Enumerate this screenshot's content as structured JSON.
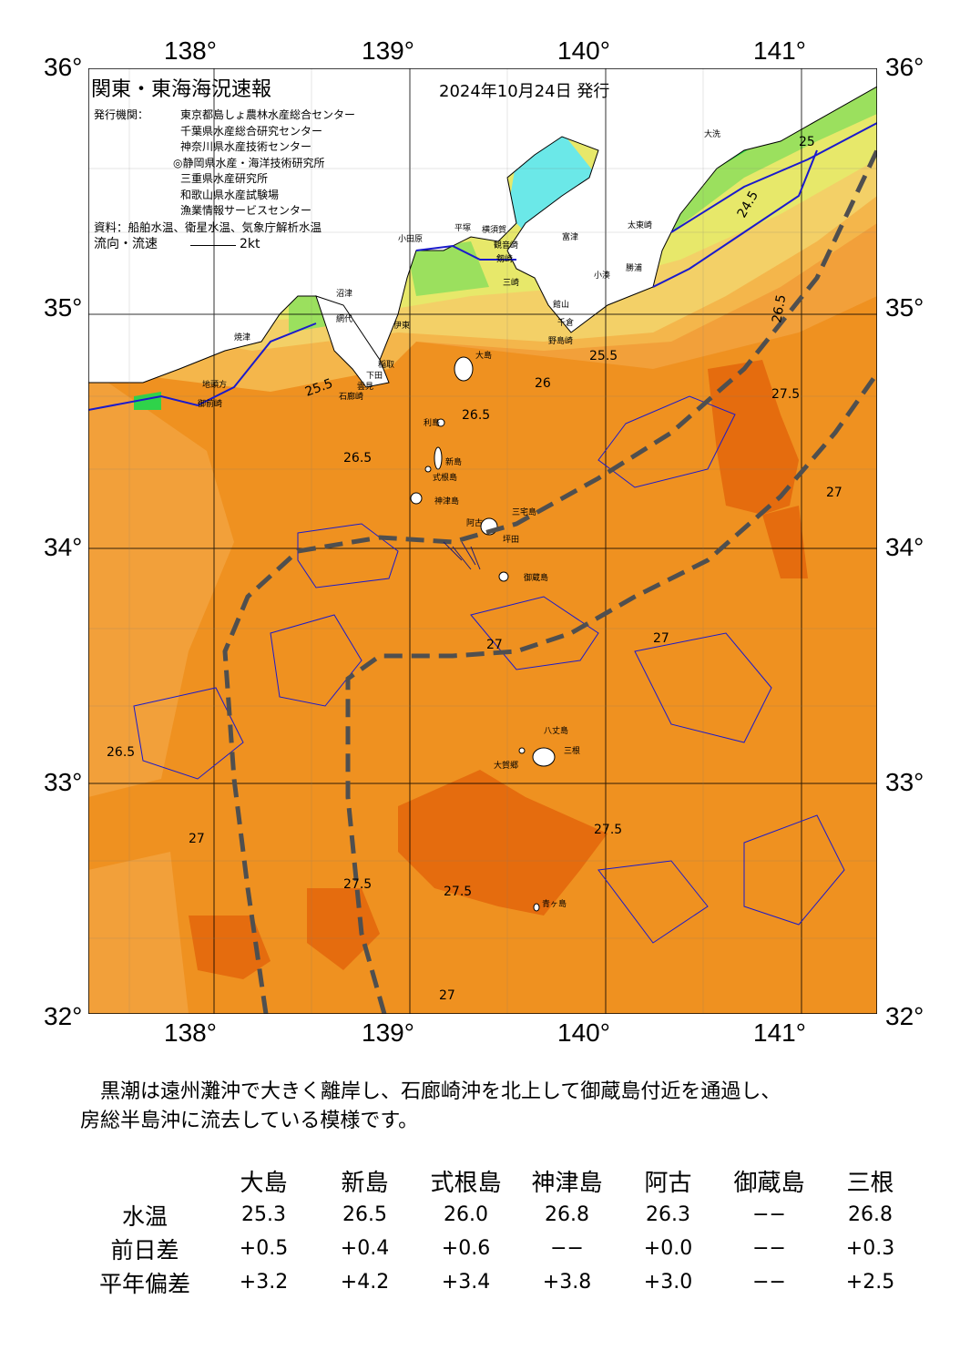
{
  "map": {
    "title": "関東・東海海況速報",
    "issue_date": "2024年10月24日 発行",
    "issuers_label": "発行機関：",
    "issuers": [
      "東京都島しょ農林水産総合センター",
      "千葉県水産総合研究センター",
      "神奈川県水産技術センター",
      "◎静岡県水産・海洋技術研究所",
      "三重県水産研究所",
      "和歌山県水産試験場",
      "漁業情報サービスセンター"
    ],
    "source": "資料：船舶水温、衛星水温、気象庁解析水温",
    "flow_label": "流向・流速",
    "flow_scale": "2kt",
    "lon_labels": [
      "138°",
      "139°",
      "140°",
      "141°"
    ],
    "lat_labels": [
      "36°",
      "35°",
      "34°",
      "33°",
      "32°"
    ],
    "place_labels": [
      "大島",
      "利島",
      "新島",
      "式根島",
      "神津島",
      "三宅島",
      "御蔵島",
      "八丈島",
      "青ヶ島",
      "大洗",
      "太東崎",
      "勝浦",
      "小湊",
      "館山",
      "千倉",
      "野島崎",
      "富津",
      "横須賀",
      "観音崎",
      "剱崎",
      "三崎",
      "平塚",
      "小田原",
      "網代",
      "伊東",
      "稲取",
      "下田",
      "石廊崎",
      "雲見",
      "御前崎",
      "地頭方",
      "焼津",
      "沼津",
      "阿古",
      "坪田",
      "大賀郷",
      "三根"
    ],
    "contour_labels": [
      "24.5",
      "25",
      "25.5",
      "26",
      "26.5",
      "27",
      "27.5"
    ],
    "colors": {
      "t24": "#2fd34a",
      "t245": "#9be05e",
      "t25": "#e7e86a",
      "t255": "#f3d067",
      "t26": "#f4b64b",
      "t265": "#f2a03a",
      "t27": "#ef9120",
      "t275": "#e56c0e",
      "bay": "#6be8e8",
      "isotherm": "#1a1acc",
      "kuroshio": "#4f4f4f"
    }
  },
  "comment": {
    "line1": "　黒潮は遠州灘沖で大きく離岸し、石廊崎沖を北上して御蔵島付近を通過し、",
    "line2": "房総半島沖に流去している模様です。"
  },
  "table": {
    "stations": [
      "大島",
      "新島",
      "式根島",
      "神津島",
      "阿古",
      "御蔵島",
      "三根"
    ],
    "rows": [
      {
        "label": "水温",
        "values": [
          "25.3",
          "26.5",
          "26.0",
          "26.8",
          "26.3",
          "−−",
          "26.8"
        ]
      },
      {
        "label": "前日差",
        "values": [
          "+0.5",
          "+0.4",
          "+0.6",
          "−−",
          "+0.0",
          "−−",
          "+0.3"
        ]
      },
      {
        "label": "平年偏差",
        "values": [
          "+3.2",
          "+4.2",
          "+3.4",
          "+3.8",
          "+3.0",
          "−−",
          "+2.5"
        ]
      }
    ]
  }
}
